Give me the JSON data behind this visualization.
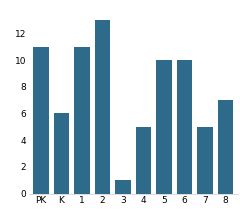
{
  "categories": [
    "PK",
    "K",
    "1",
    "2",
    "3",
    "4",
    "5",
    "6",
    "7",
    "8"
  ],
  "values": [
    11,
    6,
    11,
    13,
    1,
    5,
    10,
    10,
    5,
    7
  ],
  "bar_color": "#2e6b8a",
  "ylim": [
    0,
    14
  ],
  "yticks": [
    0,
    2,
    4,
    6,
    8,
    10,
    12
  ],
  "background_color": "#ffffff"
}
